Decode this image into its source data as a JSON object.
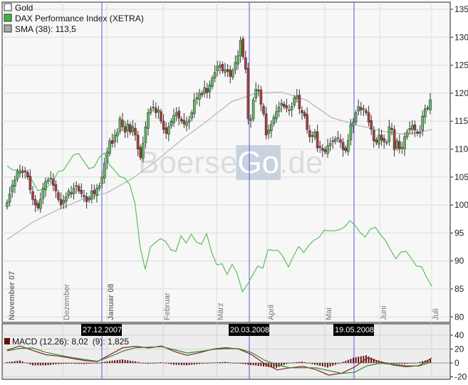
{
  "legend": {
    "gold": "Gold",
    "dax": "DAX Performance Index (XETRA)",
    "sma": "SMA (38): 113,5",
    "macd_part1": "MACD (12,26): 8,02",
    "macd_part2": "(9): 1,825"
  },
  "watermark": {
    "part1": "Boerse",
    "part2": "Go",
    "part3": ".de"
  },
  "date_markers": [
    "27.12.2007",
    "20.03.2008",
    "19.05.2008"
  ],
  "colors": {
    "up_candle": "#5cc05c",
    "down_candle": "#b23b3b",
    "gold_line": "#5cbf5c",
    "sma_line": "#b4b4b4",
    "macd_line": "#8b2020",
    "signal_line": "#2e8b2e",
    "histogram": "#6b0f0f",
    "marker_line": "#5555dd"
  },
  "chart_data": [
    {
      "type": "candlestick",
      "title": "",
      "y_axis": {
        "ticks": [
          "135",
          "130",
          "125",
          "120",
          "115",
          "110",
          "105",
          "100",
          "95",
          "90",
          "85",
          "80"
        ],
        "ylim": [
          80,
          135
        ],
        "side": "right"
      },
      "x_axis": {
        "tick_labels": [
          "November 07",
          "Dezember",
          "Januar 08",
          "Februar",
          "März",
          "April",
          "Mai",
          "Juni",
          "Juli"
        ]
      },
      "grid": true,
      "legend_position": "top-left",
      "candle_closes": [
        100.5,
        102,
        103.5,
        104.5,
        106,
        106,
        105.8,
        106,
        105,
        102.7,
        101,
        100,
        99.5,
        101,
        103,
        104.2,
        104.5,
        104.8,
        103.5,
        102.5,
        101,
        100,
        100.8,
        101.5,
        102.5,
        102,
        103,
        103.5,
        102.5,
        102,
        101.5,
        100.6,
        101.2,
        102.5,
        102,
        103,
        103.5,
        105,
        107.5,
        109.5,
        111.5,
        111,
        112.5,
        113,
        115.5,
        114,
        113,
        114.5,
        113,
        114,
        112.5,
        110,
        108.5,
        111,
        114,
        116.5,
        117.2,
        117.5,
        116.5,
        117,
        115,
        113.5,
        112.8,
        114,
        115,
        116,
        116.5,
        115.5,
        115,
        114.5,
        114.8,
        115.2,
        116.5,
        118.8,
        119.2,
        120,
        119.7,
        121,
        120.1,
        121.5,
        122.7,
        123.7,
        124.8,
        125,
        124,
        124.2,
        123.9,
        123,
        124,
        125.5,
        126.7,
        129.4,
        126.5,
        124.3,
        115.4,
        115.4,
        118.8,
        120.7,
        120.4,
        118,
        116.3,
        112.5,
        113.4,
        114.4,
        115.7,
        116.7,
        117.5,
        118.2,
        117.6,
        117.3,
        117,
        117.6,
        119.2,
        119.5,
        117.2,
        116.5,
        115.9,
        113.5,
        112.2,
        112.4,
        113.1,
        110.2,
        110.3,
        109.8,
        109.5,
        110.6,
        111,
        111.5,
        111.8,
        112,
        111.2,
        109.9,
        109.7,
        111.5,
        114.4,
        114.8,
        116.5,
        117.6,
        117,
        117.2,
        116.5,
        114.8,
        113.5,
        111.5,
        111.2,
        112.5,
        111.6,
        111.3,
        111.2,
        114,
        113.5,
        109.9,
        111.5,
        110,
        110.3,
        112.2,
        113.1,
        113.7,
        114.2,
        113.4,
        112.8,
        113,
        115.9,
        117.2,
        117.3,
        118.8
      ],
      "gold_line": [
        107.0,
        106.3,
        106.2,
        106.3,
        105.7,
        104.2,
        102.6,
        102.8,
        103.3,
        104.3,
        106.0,
        106.2,
        107.6,
        109.0,
        109.2,
        107.8,
        106.5,
        106.8,
        108.5,
        109.3,
        107.2,
        106.2,
        105.1,
        104.8,
        103.6,
        100.3,
        92.5,
        88.5,
        92.5,
        93.3,
        94.0,
        93.5,
        92.0,
        91.7,
        94.5,
        93.2,
        94.8,
        93.4,
        93.0,
        94.9,
        91.5,
        89.3,
        89.5,
        87.6,
        89.4,
        87.7,
        84.5,
        85.8,
        87.5,
        89.1,
        88.7,
        92.0,
        91.9,
        91.9,
        90.7,
        88.9,
        90.9,
        92.6,
        91.5,
        92.8,
        93.7,
        94.2,
        95.5,
        95.4,
        95.4,
        95.6,
        96.1,
        97.2,
        96.4,
        95.1,
        94.3,
        95.7,
        96.0,
        94.7,
        93.6,
        91.9,
        90.4,
        91.6,
        91.7,
        90.5,
        89.1,
        89.0,
        87.1,
        85.5
      ],
      "sma_38": [
        93.8,
        96.9,
        99.1,
        101.0,
        102.2,
        104.7,
        108.0,
        111.7,
        115.0,
        118.5,
        120.0,
        120.2,
        118.7,
        115.6,
        114.3,
        113.2,
        112.6,
        113.5
      ]
    },
    {
      "type": "line",
      "title": "",
      "y_axis": {
        "ticks": [
          "40",
          "20",
          "0",
          "-20"
        ],
        "ylim": [
          -22,
          43
        ],
        "side": "right"
      },
      "grid": true,
      "macd": [
        18.5,
        24.5,
        18,
        11.8,
        10,
        6.8,
        3.5,
        2,
        12,
        22,
        24,
        21.5,
        24.5,
        16.5,
        11,
        15,
        20,
        22,
        20,
        12,
        -1,
        -10,
        -7,
        -5,
        -9.5,
        -17.5,
        -15,
        -6,
        7,
        2,
        -3,
        -5.5,
        -4,
        7
      ],
      "signal": [
        17.4,
        21,
        21.5,
        15.3,
        11.5,
        7.8,
        5,
        2.5,
        9,
        17,
        22,
        22.8,
        23.5,
        19,
        14.4,
        16.5,
        19.5,
        20.5,
        20.5,
        15,
        4,
        -3,
        -7,
        -7,
        -7,
        -11,
        -15,
        -13.5,
        -4,
        -0.5,
        -2,
        -4,
        -4.5,
        1.5
      ]
    }
  ]
}
